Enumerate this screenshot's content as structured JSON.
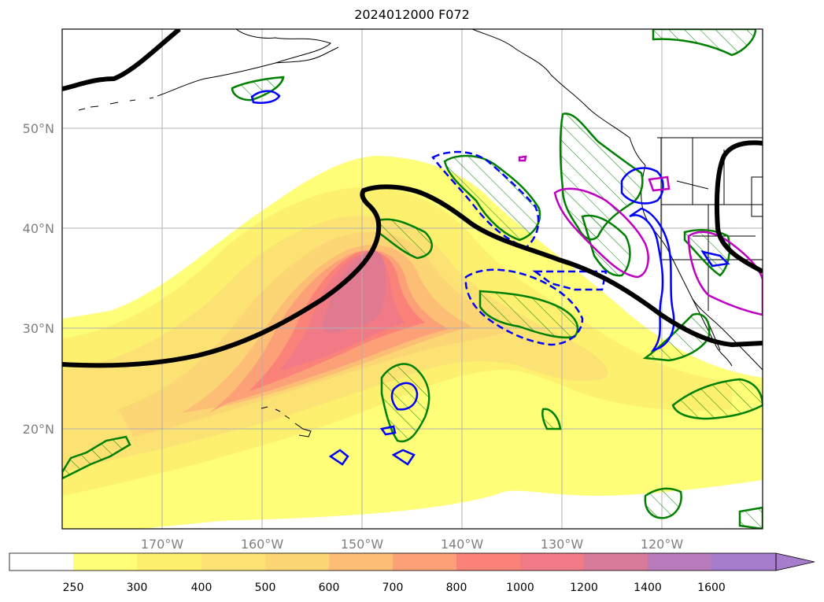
{
  "title": "2024012000 F072",
  "latitude_labels": [
    "20°N",
    "30°N",
    "40°N",
    "50°N"
  ],
  "longitude_labels": [
    "170°W",
    "160°W",
    "150°W",
    "140°W",
    "130°W",
    "120°W"
  ],
  "colorbar": {
    "ticks": [
      "250",
      "300",
      "400",
      "500",
      "600",
      "700",
      "800",
      "1000",
      "1200",
      "1400",
      "1600"
    ],
    "colors": [
      "#ffffff",
      "#fefe78",
      "#fdf06e",
      "#fce273",
      "#fcd575",
      "#fcbd74",
      "#fca078",
      "#fa8279",
      "#f07a85",
      "#d87a9a",
      "#b87cbc",
      "#a67ccc"
    ],
    "extend": "max"
  },
  "contour_colors": {
    "jet_axis": "#000000",
    "green_hatched": "#008000",
    "blue": "#0000ff",
    "magenta": "#c000c0"
  }
}
